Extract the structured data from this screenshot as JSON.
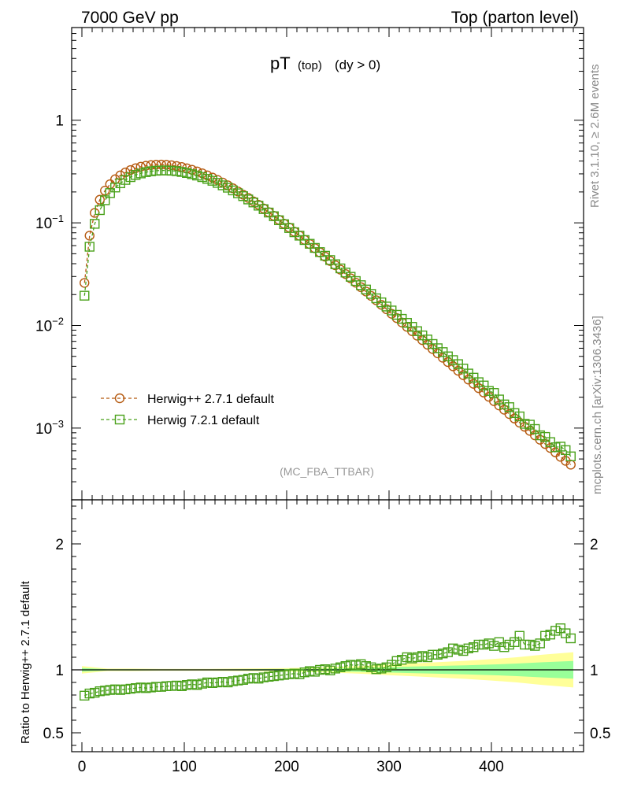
{
  "header": {
    "left": "7000 GeV pp",
    "right": "Top (parton level)"
  },
  "side_labels": {
    "rivet": "Rivet 3.1.10, ≥ 2.6M events",
    "mcplots": "mcplots.cern.ch [arXiv:1306.3436]"
  },
  "colors": {
    "herwigpp": "#b5590f",
    "herwig7": "#4aa11a",
    "band_yellow": "#ffff99",
    "band_green": "#99ff99"
  },
  "chart_data": [
    {
      "type": "line",
      "title_main": "pT",
      "title_sub": "(top)",
      "title_cut": "(dy > 0)",
      "watermark": "(MC_FBA_TTBAR)",
      "yscale": "log",
      "xlim": [
        -10,
        490
      ],
      "ylim": [
        0.0002,
        8
      ],
      "y_ticks": [
        {
          "value": 1,
          "base": "1",
          "exp": ""
        },
        {
          "value": 0.1,
          "base": "10",
          "exp": "−1"
        },
        {
          "value": 0.01,
          "base": "10",
          "exp": "−2"
        },
        {
          "value": 0.001,
          "base": "10",
          "exp": "−3"
        }
      ],
      "legend_position": "lower-left",
      "series": [
        {
          "name": "Herwig++ 2.7.1 default",
          "marker": "circle",
          "x": [
            2.5,
            7.5,
            12.5,
            17.5,
            22.5,
            27.5,
            32.5,
            37.5,
            42.5,
            47.5,
            52.5,
            57.5,
            62.5,
            67.5,
            72.5,
            77.5,
            82.5,
            87.5,
            92.5,
            97.5,
            102.5,
            107.5,
            112.5,
            117.5,
            122.5,
            127.5,
            132.5,
            137.5,
            142.5,
            147.5,
            152.5,
            157.5,
            162.5,
            167.5,
            172.5,
            177.5,
            182.5,
            187.5,
            192.5,
            197.5,
            202.5,
            207.5,
            212.5,
            217.5,
            222.5,
            227.5,
            232.5,
            237.5,
            242.5,
            247.5,
            252.5,
            257.5,
            262.5,
            267.5,
            272.5,
            277.5,
            282.5,
            287.5,
            292.5,
            297.5,
            302.5,
            307.5,
            312.5,
            317.5,
            322.5,
            327.5,
            332.5,
            337.5,
            342.5,
            347.5,
            352.5,
            357.5,
            362.5,
            367.5,
            372.5,
            377.5,
            382.5,
            387.5,
            392.5,
            397.5,
            402.5,
            407.5,
            412.5,
            417.5,
            422.5,
            427.5,
            432.5,
            437.5,
            442.5,
            447.5,
            452.5,
            457.5,
            462.5,
            467.5,
            472.5,
            477.5
          ],
          "values": [
            0.026,
            0.075,
            0.125,
            0.168,
            0.206,
            0.238,
            0.266,
            0.29,
            0.31,
            0.327,
            0.341,
            0.352,
            0.36,
            0.366,
            0.369,
            0.37,
            0.368,
            0.364,
            0.358,
            0.35,
            0.34,
            0.329,
            0.317,
            0.304,
            0.29,
            0.276,
            0.262,
            0.247,
            0.232,
            0.217,
            0.202,
            0.188,
            0.175,
            0.162,
            0.15,
            0.138,
            0.127,
            0.117,
            0.107,
            0.098,
            0.09,
            0.082,
            0.075,
            0.0683,
            0.0622,
            0.0566,
            0.0515,
            0.0468,
            0.0425,
            0.0386,
            0.035,
            0.0317,
            0.0288,
            0.0261,
            0.0236,
            0.0214,
            0.0194,
            0.0176,
            0.0159,
            0.0144,
            0.013,
            0.0118,
            0.0107,
            0.0097,
            0.0088,
            0.00795,
            0.0072,
            0.0065,
            0.0059,
            0.00535,
            0.00485,
            0.0044,
            0.004,
            0.00362,
            0.00328,
            0.00297,
            0.0027,
            0.00245,
            0.00222,
            0.00202,
            0.00183,
            0.00166,
            0.00151,
            0.00137,
            0.00124,
            0.00113,
            0.00103,
            0.00094,
            0.00085,
            0.00077,
            0.0007,
            0.00064,
            0.00058,
            0.000525,
            0.00048,
            0.00044
          ]
        },
        {
          "name": "Herwig 7.2.1 default",
          "marker": "square",
          "x": [
            2.5,
            7.5,
            12.5,
            17.5,
            22.5,
            27.5,
            32.5,
            37.5,
            42.5,
            47.5,
            52.5,
            57.5,
            62.5,
            67.5,
            72.5,
            77.5,
            82.5,
            87.5,
            92.5,
            97.5,
            102.5,
            107.5,
            112.5,
            117.5,
            122.5,
            127.5,
            132.5,
            137.5,
            142.5,
            147.5,
            152.5,
            157.5,
            162.5,
            167.5,
            172.5,
            177.5,
            182.5,
            187.5,
            192.5,
            197.5,
            202.5,
            207.5,
            212.5,
            217.5,
            222.5,
            227.5,
            232.5,
            237.5,
            242.5,
            247.5,
            252.5,
            257.5,
            262.5,
            267.5,
            272.5,
            277.5,
            282.5,
            287.5,
            292.5,
            297.5,
            302.5,
            307.5,
            312.5,
            317.5,
            322.5,
            327.5,
            332.5,
            337.5,
            342.5,
            347.5,
            352.5,
            357.5,
            362.5,
            367.5,
            372.5,
            377.5,
            382.5,
            387.5,
            392.5,
            397.5,
            402.5,
            407.5,
            412.5,
            417.5,
            422.5,
            427.5,
            432.5,
            437.5,
            442.5,
            447.5,
            452.5,
            457.5,
            462.5,
            467.5,
            472.5,
            477.5
          ],
          "values": [
            0.0195,
            0.0585,
            0.0978,
            0.133,
            0.166,
            0.195,
            0.221,
            0.243,
            0.262,
            0.279,
            0.293,
            0.303,
            0.312,
            0.318,
            0.322,
            0.324,
            0.324,
            0.322,
            0.319,
            0.313,
            0.306,
            0.298,
            0.289,
            0.279,
            0.268,
            0.257,
            0.245,
            0.232,
            0.22,
            0.207,
            0.194,
            0.182,
            0.169,
            0.158,
            0.147,
            0.136,
            0.126,
            0.116,
            0.106,
            0.097,
            0.089,
            0.081,
            0.075,
            0.068,
            0.0625,
            0.057,
            0.0519,
            0.0478,
            0.0434,
            0.0395,
            0.036,
            0.0328,
            0.0298,
            0.0271,
            0.0247,
            0.0224,
            0.0203,
            0.0184,
            0.0168,
            0.0153,
            0.014,
            0.0127,
            0.0116,
            0.0106,
            0.0097,
            0.0088,
            0.008,
            0.0073,
            0.0066,
            0.006,
            0.0055,
            0.005,
            0.0046,
            0.0042,
            0.0038,
            0.0034,
            0.0031,
            0.0028,
            0.0026,
            0.0023,
            0.0022,
            0.0019,
            0.0017,
            0.0016,
            0.0014,
            0.0013,
            0.0011,
            0.00108,
            0.00098,
            0.00085,
            0.00082,
            0.00073,
            0.00065,
            0.00066,
            0.00061,
            0.00053
          ]
        }
      ]
    },
    {
      "type": "line",
      "ylabel": "Ratio to Herwig++ 2.7.1 default",
      "xlim": [
        -10,
        490
      ],
      "ylim": [
        0.35,
        2.35
      ],
      "y_ticks": [
        0.5,
        1,
        2
      ],
      "x_ticks": [
        0,
        100,
        200,
        300,
        400
      ],
      "reference": 1,
      "bands": {
        "x": [
          0,
          25,
          50,
          75,
          100,
          125,
          150,
          175,
          200,
          225,
          250,
          275,
          300,
          325,
          350,
          375,
          400,
          425,
          450,
          480
        ],
        "yellow_half": [
          0.03,
          0.01,
          0.01,
          0.008,
          0.008,
          0.008,
          0.01,
          0.012,
          0.014,
          0.018,
          0.024,
          0.032,
          0.042,
          0.052,
          0.062,
          0.072,
          0.085,
          0.1,
          0.12,
          0.14
        ],
        "green_half": [
          0.015,
          0.005,
          0.005,
          0.004,
          0.004,
          0.004,
          0.005,
          0.006,
          0.007,
          0.009,
          0.012,
          0.016,
          0.021,
          0.026,
          0.031,
          0.036,
          0.042,
          0.05,
          0.06,
          0.07
        ]
      },
      "series": [
        {
          "name": "Herwig 7.2.1 default",
          "marker": "square",
          "x": [
            2.5,
            7.5,
            12.5,
            17.5,
            22.5,
            27.5,
            32.5,
            37.5,
            42.5,
            47.5,
            52.5,
            57.5,
            62.5,
            67.5,
            72.5,
            77.5,
            82.5,
            87.5,
            92.5,
            97.5,
            102.5,
            107.5,
            112.5,
            117.5,
            122.5,
            127.5,
            132.5,
            137.5,
            142.5,
            147.5,
            152.5,
            157.5,
            162.5,
            167.5,
            172.5,
            177.5,
            182.5,
            187.5,
            192.5,
            197.5,
            202.5,
            207.5,
            212.5,
            217.5,
            222.5,
            227.5,
            232.5,
            237.5,
            242.5,
            247.5,
            252.5,
            257.5,
            262.5,
            267.5,
            272.5,
            277.5,
            282.5,
            287.5,
            292.5,
            297.5,
            302.5,
            307.5,
            312.5,
            317.5,
            322.5,
            327.5,
            332.5,
            337.5,
            342.5,
            347.5,
            352.5,
            357.5,
            362.5,
            367.5,
            372.5,
            377.5,
            382.5,
            387.5,
            392.5,
            397.5,
            402.5,
            407.5,
            412.5,
            417.5,
            422.5,
            427.5,
            432.5,
            437.5,
            442.5,
            447.5,
            452.5,
            457.5,
            462.5,
            467.5,
            472.5,
            477.5
          ],
          "values": [
            0.795,
            0.812,
            0.818,
            0.83,
            0.835,
            0.84,
            0.845,
            0.84,
            0.845,
            0.85,
            0.855,
            0.86,
            0.855,
            0.86,
            0.865,
            0.865,
            0.87,
            0.872,
            0.875,
            0.87,
            0.88,
            0.885,
            0.88,
            0.89,
            0.9,
            0.895,
            0.9,
            0.905,
            0.9,
            0.91,
            0.915,
            0.92,
            0.93,
            0.935,
            0.93,
            0.94,
            0.945,
            0.95,
            0.955,
            0.96,
            0.965,
            0.97,
            0.965,
            0.98,
            0.99,
            0.985,
            1.0,
            1.005,
            0.995,
            1.01,
            1.02,
            1.03,
            1.04,
            1.035,
            1.045,
            1.03,
            1.02,
            1.005,
            1.01,
            1.02,
            1.04,
            1.07,
            1.08,
            1.1,
            1.09,
            1.1,
            1.11,
            1.1,
            1.12,
            1.12,
            1.13,
            1.14,
            1.17,
            1.16,
            1.15,
            1.17,
            1.18,
            1.2,
            1.2,
            1.21,
            1.19,
            1.22,
            1.18,
            1.2,
            1.22,
            1.27,
            1.2,
            1.2,
            1.19,
            1.21,
            1.27,
            1.28,
            1.31,
            1.33,
            1.29,
            1.25
          ]
        }
      ]
    }
  ]
}
